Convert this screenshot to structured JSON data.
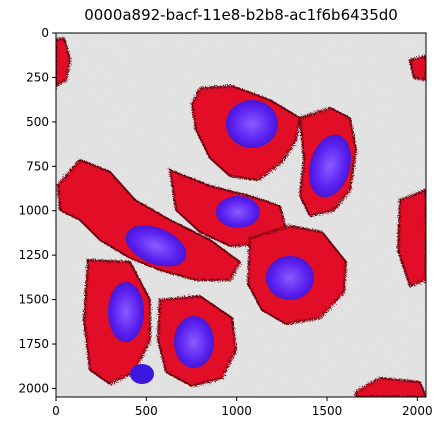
{
  "figure": {
    "title": "0000a892-bacf-11e8-b2b8-ac1f6b6435d0"
  },
  "image_axes": {
    "xlim": [
      0,
      2048
    ],
    "ylim": [
      2048,
      0
    ],
    "x_ticks": [
      {
        "value": 0,
        "label": "0"
      },
      {
        "value": 500,
        "label": "500"
      },
      {
        "value": 1000,
        "label": "1000"
      },
      {
        "value": 1500,
        "label": "1500"
      },
      {
        "value": 2000,
        "label": "2000"
      }
    ],
    "y_ticks": [
      {
        "value": 0,
        "label": "0"
      },
      {
        "value": 250,
        "label": "250"
      },
      {
        "value": 500,
        "label": "500"
      },
      {
        "value": 750,
        "label": "750"
      },
      {
        "value": 1000,
        "label": "1000"
      },
      {
        "value": 1250,
        "label": "1250"
      },
      {
        "value": 1500,
        "label": "1500"
      },
      {
        "value": 1750,
        "label": "1750"
      },
      {
        "value": 2000,
        "label": "2000"
      }
    ]
  },
  "colors": {
    "background": "#d9d9d9",
    "cytoplasm": "#e8102a",
    "cytoplasm_dark": "#7a0010",
    "nucleus": "#5a20f0",
    "nucleus_inner": "#7a48ff"
  }
}
